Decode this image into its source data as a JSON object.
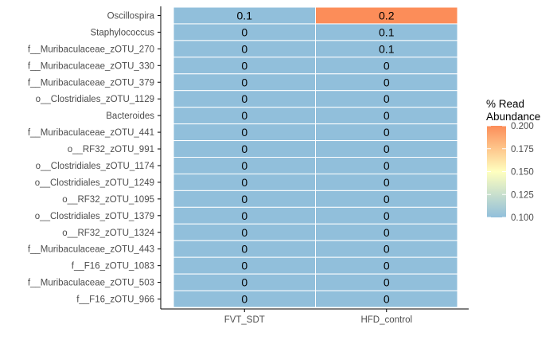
{
  "chart_data": {
    "type": "heatmap",
    "x_categories": [
      "FVT_SDT",
      "HFD_control"
    ],
    "y_categories": [
      "Oscillospira",
      "Staphylococcus",
      "f__Muribaculaceae_zOTU_270",
      "f__Muribaculaceae_zOTU_330",
      "f__Muribaculaceae_zOTU_379",
      "o__Clostridiales_zOTU_1129",
      "Bacteroides",
      "f__Muribaculaceae_zOTU_441",
      "o__RF32_zOTU_991",
      "o__Clostridiales_zOTU_1174",
      "o__Clostridiales_zOTU_1249",
      "o__RF32_zOTU_1095",
      "o__Clostridiales_zOTU_1379",
      "o__RF32_zOTU_1324",
      "f__Muribaculaceae_zOTU_443",
      "f__F16_zOTU_1083",
      "f__Muribaculaceae_zOTU_503",
      "f__F16_zOTU_966"
    ],
    "values": [
      [
        0.1,
        0.2
      ],
      [
        0.0,
        0.1
      ],
      [
        0.0,
        0.1
      ],
      [
        0.0,
        0.0
      ],
      [
        0.0,
        0.0
      ],
      [
        0.0,
        0.0
      ],
      [
        0.0,
        0.0
      ],
      [
        0.0,
        0.0
      ],
      [
        0.0,
        0.0
      ],
      [
        0.0,
        0.0
      ],
      [
        0.0,
        0.0
      ],
      [
        0.0,
        0.0
      ],
      [
        0.0,
        0.0
      ],
      [
        0.0,
        0.0
      ],
      [
        0.0,
        0.0
      ],
      [
        0.0,
        0.0
      ],
      [
        0.0,
        0.0
      ],
      [
        0.0,
        0.0
      ]
    ],
    "cell_labels": [
      [
        "0.1",
        "0.2"
      ],
      [
        "0",
        "0.1"
      ],
      [
        "0",
        "0.1"
      ],
      [
        "0",
        "0"
      ],
      [
        "0",
        "0"
      ],
      [
        "0",
        "0"
      ],
      [
        "0",
        "0"
      ],
      [
        "0",
        "0"
      ],
      [
        "0",
        "0"
      ],
      [
        "0",
        "0"
      ],
      [
        "0",
        "0"
      ],
      [
        "0",
        "0"
      ],
      [
        "0",
        "0"
      ],
      [
        "0",
        "0"
      ],
      [
        "0",
        "0"
      ],
      [
        "0",
        "0"
      ],
      [
        "0",
        "0"
      ],
      [
        "0",
        "0"
      ]
    ],
    "legend": {
      "title_lines": [
        "% Read",
        "Abundance"
      ],
      "min": 0.1,
      "max": 0.2,
      "ticks": [
        0.1,
        0.125,
        0.15,
        0.175,
        0.2
      ],
      "tick_labels": [
        "0.100",
        "0.125",
        "0.150",
        "0.175",
        "0.200"
      ],
      "placement": "right"
    },
    "colors": {
      "low": "#91bfdb",
      "mid": "#ffffbf",
      "high": "#fc8d59",
      "cell_border": "#ffffff",
      "axis": "#000000",
      "tick_text": "#4d4d4d"
    },
    "grid": false
  }
}
